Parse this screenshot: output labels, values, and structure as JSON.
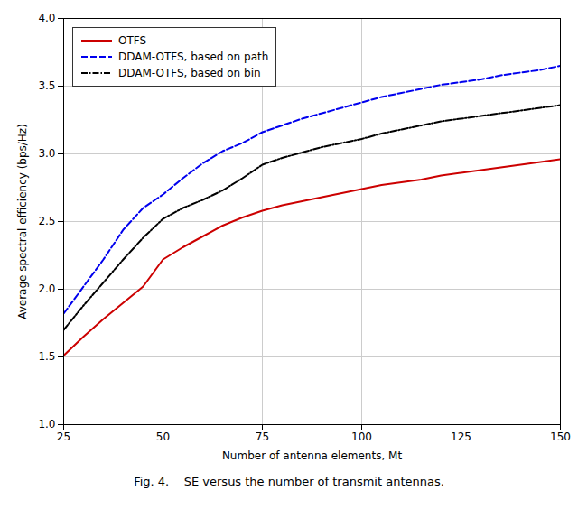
{
  "chart_data": {
    "type": "line",
    "caption": "Fig. 4.    SE versus the number of transmit antennas.",
    "x_label": "Number of antenna elements, Mt",
    "y_label": "Average spectral efficiency (bps/Hz)",
    "x": [
      25,
      30,
      35,
      40,
      45,
      50,
      55,
      60,
      65,
      70,
      75,
      80,
      85,
      90,
      95,
      100,
      105,
      110,
      115,
      120,
      125,
      130,
      135,
      140,
      145,
      150
    ],
    "series": [
      {
        "name": "OTFS",
        "color": "#cc0000",
        "line_style": "solid",
        "values": [
          1.51,
          1.65,
          1.78,
          1.9,
          2.02,
          2.22,
          2.31,
          2.39,
          2.47,
          2.53,
          2.58,
          2.62,
          2.65,
          2.68,
          2.71,
          2.74,
          2.77,
          2.79,
          2.81,
          2.84,
          2.86,
          2.88,
          2.9,
          2.92,
          2.94,
          2.96
        ]
      },
      {
        "name": "DDAM-OTFS, based on path",
        "color": "#0000ee",
        "line_style": "dashed",
        "values": [
          1.82,
          2.02,
          2.22,
          2.44,
          2.6,
          2.7,
          2.82,
          2.93,
          3.02,
          3.08,
          3.16,
          3.21,
          3.26,
          3.3,
          3.34,
          3.38,
          3.42,
          3.45,
          3.48,
          3.51,
          3.53,
          3.55,
          3.58,
          3.6,
          3.62,
          3.65
        ]
      },
      {
        "name": "DDAM-OTFS, based on bin",
        "color": "#000000",
        "line_style": "dashdot",
        "values": [
          1.7,
          1.88,
          2.05,
          2.22,
          2.38,
          2.52,
          2.6,
          2.66,
          2.73,
          2.82,
          2.92,
          2.97,
          3.01,
          3.05,
          3.08,
          3.11,
          3.15,
          3.18,
          3.21,
          3.24,
          3.26,
          3.28,
          3.3,
          3.32,
          3.34,
          3.36
        ]
      }
    ],
    "xlim": [
      25,
      150
    ],
    "ylim": [
      1.0,
      4.0
    ],
    "xticks": [
      25,
      50,
      75,
      100,
      125,
      150
    ],
    "yticks": [
      {
        "value": 1.0,
        "label": "1.0"
      },
      {
        "value": 1.5,
        "label": "1.5"
      },
      {
        "value": 2.0,
        "label": "2.0"
      },
      {
        "value": 2.5,
        "label": "2.5"
      },
      {
        "value": 3.0,
        "label": "3.0"
      },
      {
        "value": 3.5,
        "label": "3.5"
      },
      {
        "value": 4.0,
        "label": "4.0"
      }
    ],
    "grid": true,
    "legend": "upper left"
  }
}
